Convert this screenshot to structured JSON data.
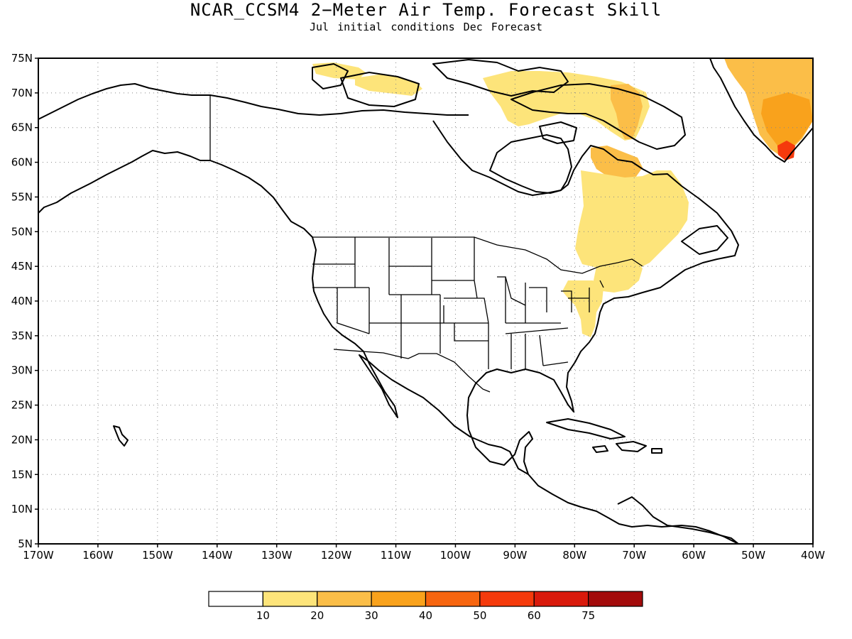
{
  "title": "NCAR_CCSM4 2−Meter Air Temp. Forecast Skill",
  "subtitle": "Jul initial conditions  Dec Forecast",
  "map": {
    "lon_range": [
      -170,
      -40
    ],
    "lat_range": [
      5,
      75
    ],
    "x_ticks": [
      "170W",
      "160W",
      "150W",
      "140W",
      "130W",
      "120W",
      "110W",
      "100W",
      "90W",
      "80W",
      "70W",
      "60W",
      "50W",
      "40W"
    ],
    "y_ticks": [
      "75N",
      "70N",
      "65N",
      "60N",
      "55N",
      "50N",
      "45N",
      "40N",
      "35N",
      "30N",
      "25N",
      "20N",
      "15N",
      "10N",
      "5N"
    ],
    "gridlines": "dotted"
  },
  "colorbar": {
    "labels": [
      "10",
      "20",
      "30",
      "40",
      "50",
      "60",
      "75"
    ],
    "colors": [
      "#ffffff",
      "#fde47a",
      "#fbbe48",
      "#f9a21c",
      "#f7650f",
      "#f53a0c",
      "#d91a0c",
      "#a30b0b"
    ]
  },
  "skill_regions": [
    {
      "name": "arctic-archipelago-west",
      "level": 1
    },
    {
      "name": "arctic-archipelago-central",
      "level": 1
    },
    {
      "name": "baffin-island",
      "level": 1
    },
    {
      "name": "baffin-island-core",
      "level": 2
    },
    {
      "name": "northern-quebec",
      "level": 2
    },
    {
      "name": "quebec-labrador",
      "level": 1
    },
    {
      "name": "northeast-us",
      "level": 1
    },
    {
      "name": "pennsylvania-ohio",
      "level": 1
    },
    {
      "name": "greenland",
      "level": 2
    },
    {
      "name": "greenland-east",
      "level": 3
    },
    {
      "name": "greenland-south-tip",
      "level": 5
    }
  ]
}
